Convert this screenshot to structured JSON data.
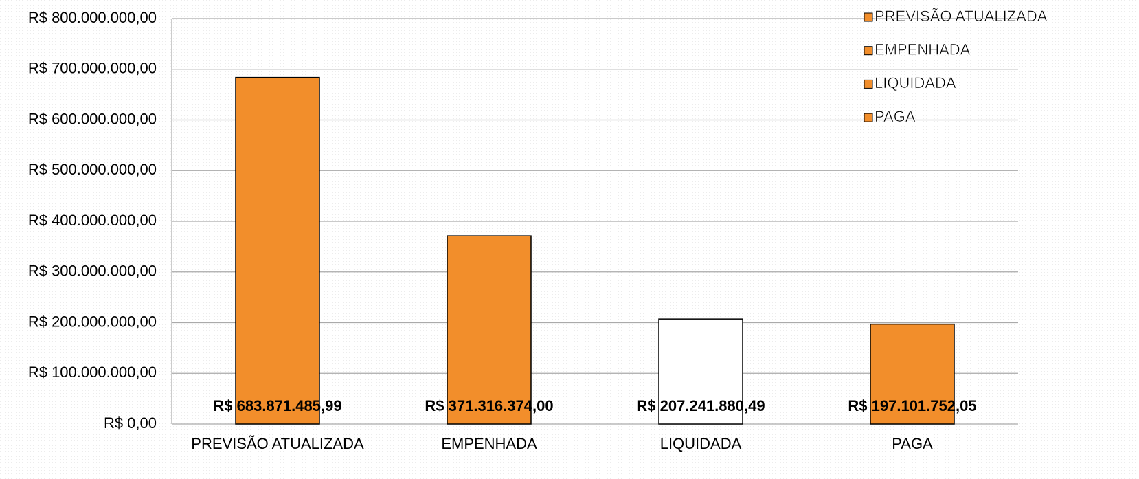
{
  "chart_data": {
    "type": "bar",
    "categories": [
      "PREVISÃO ATUALIZADA",
      "EMPENHADA",
      "LIQUIDADA",
      "PAGA"
    ],
    "values": [
      683871485.99,
      371316374.0,
      207241880.49,
      197101752.05
    ],
    "value_labels": [
      "R$ 683.871.485,99",
      "R$ 371.316.374,00",
      "R$ 207.241.880,49",
      "R$ 197.101.752,05"
    ],
    "colors": [
      "#f28e2b",
      "#f28e2b",
      "#ffffff",
      "#f28e2b"
    ],
    "legend_colors": [
      "#f28e2b",
      "#f28e2b",
      "#f28e2b",
      "#f28e2b"
    ],
    "legend_position": "upper right",
    "grid": true,
    "ylim": [
      0,
      800000000
    ],
    "yticks": [
      {
        "value": 0,
        "label": "R$ 0,00"
      },
      {
        "value": 100000000,
        "label": "R$ 100.000.000,00"
      },
      {
        "value": 200000000,
        "label": "R$ 200.000.000,00"
      },
      {
        "value": 300000000,
        "label": "R$ 300.000.000,00"
      },
      {
        "value": 400000000,
        "label": "R$ 400.000.000,00"
      },
      {
        "value": 500000000,
        "label": "R$ 500.000.000,00"
      },
      {
        "value": 600000000,
        "label": "R$ 600.000.000,00"
      },
      {
        "value": 700000000,
        "label": "R$ 700.000.000,00"
      },
      {
        "value": 800000000,
        "label": "R$ 800.000.000,00"
      }
    ]
  }
}
